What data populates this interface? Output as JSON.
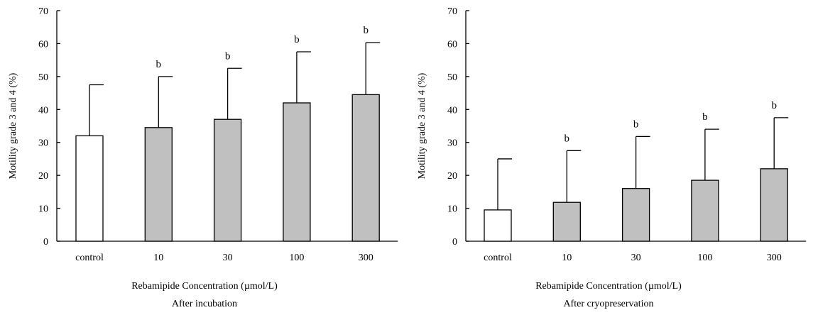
{
  "chart_data": [
    {
      "type": "bar",
      "ylabel": "Motility grade 3 and 4 (%)",
      "xlabel": "Rebamipide Concentration (µmol/L)",
      "caption": "After incubation",
      "ylim": [
        0,
        70
      ],
      "yticks": [
        0,
        10,
        20,
        30,
        40,
        50,
        60,
        70
      ],
      "categories": [
        "control",
        "10",
        "30",
        "100",
        "300"
      ],
      "values": [
        32,
        34.5,
        37,
        42,
        44.5
      ],
      "error_upper": [
        47.5,
        50,
        52.5,
        57.5,
        60.3
      ],
      "annotations": [
        "",
        "b",
        "b",
        "b",
        "b"
      ],
      "bar_colors": [
        "#ffffff",
        "#c0c0c0",
        "#c0c0c0",
        "#c0c0c0",
        "#c0c0c0"
      ],
      "grid": false,
      "legend": "none"
    },
    {
      "type": "bar",
      "ylabel": "Motility grade 3 and 4 (%)",
      "xlabel": "Rebamipide Concentration (µmol/L)",
      "caption": "After cryopreservation",
      "ylim": [
        0,
        70
      ],
      "yticks": [
        0,
        10,
        20,
        30,
        40,
        50,
        60,
        70
      ],
      "categories": [
        "control",
        "10",
        "30",
        "100",
        "300"
      ],
      "values": [
        9.5,
        11.8,
        16,
        18.5,
        22
      ],
      "error_upper": [
        25,
        27.5,
        31.8,
        34,
        37.5
      ],
      "annotations": [
        "",
        "b",
        "b",
        "b",
        "b"
      ],
      "bar_colors": [
        "#ffffff",
        "#c0c0c0",
        "#c0c0c0",
        "#c0c0c0",
        "#c0c0c0"
      ],
      "grid": false,
      "legend": "none"
    }
  ]
}
